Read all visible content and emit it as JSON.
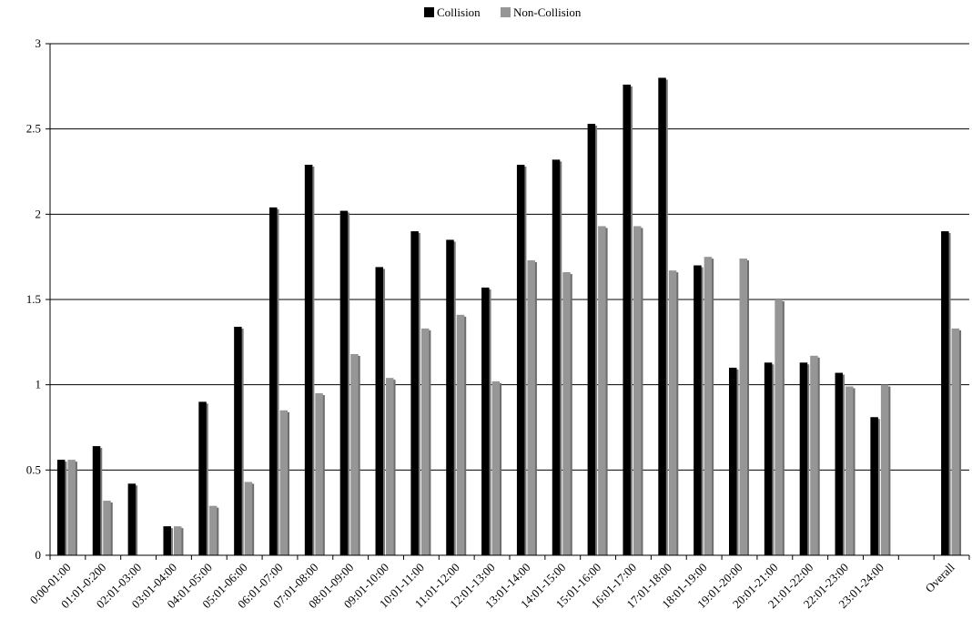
{
  "chart_data": {
    "type": "bar",
    "title": "",
    "xlabel": "",
    "ylabel": "",
    "ylim": [
      0,
      3
    ],
    "yticks": [
      "0",
      "0.5",
      "1",
      "1.5",
      "2",
      "2.5",
      "3"
    ],
    "grid": "horizontal",
    "legend_position": "top-center",
    "categories": [
      "0:00-01:00",
      "01:01-0:200",
      "02:01-03:00",
      "03:01-04:00",
      "04:01-05:00",
      "05:01-06:00",
      "06:01-07:00",
      "07:01-08:00",
      "08:01-09:00",
      "09:01-10:00",
      "10:01-11:00",
      "11:01-12:00",
      "12:01-13:00",
      "13:01-14:00",
      "14:01-15:00",
      "15:01-16:00",
      "16:01-17:00",
      "17:01-18:00",
      "18:01-19:00",
      "19:01-20:00",
      "20:01-21:00",
      "21:01-22:00",
      "22:01-23:00",
      "23:01-24:00",
      "",
      "Overall"
    ],
    "series": [
      {
        "name": "Collision",
        "color": "#000000",
        "values": [
          0.56,
          0.64,
          0.42,
          0.17,
          0.9,
          1.34,
          2.04,
          2.29,
          2.02,
          1.69,
          1.9,
          1.85,
          1.57,
          2.29,
          2.32,
          2.53,
          2.76,
          2.8,
          1.7,
          1.1,
          1.13,
          1.13,
          1.07,
          0.81,
          null,
          1.9
        ]
      },
      {
        "name": "Non-Collision",
        "color": "#969696",
        "values": [
          0.56,
          0.32,
          0,
          0.17,
          0.29,
          0.43,
          0.85,
          0.95,
          1.18,
          1.04,
          1.33,
          1.41,
          1.02,
          1.73,
          1.66,
          1.93,
          1.93,
          1.67,
          1.75,
          1.74,
          1.5,
          1.17,
          0.99,
          1.0,
          null,
          1.33
        ]
      }
    ]
  }
}
